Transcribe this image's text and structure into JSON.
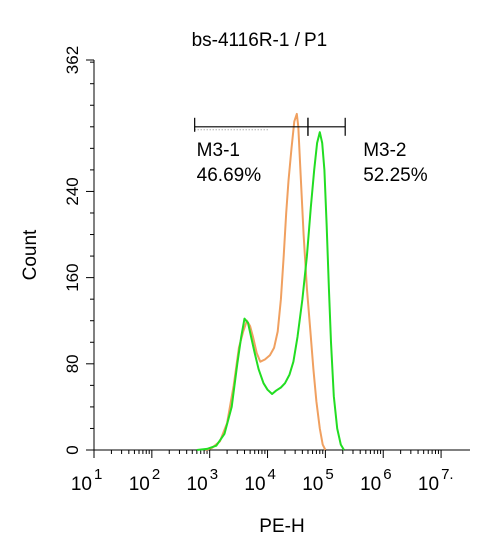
{
  "chart_data": {
    "type": "line",
    "title": "bs-4116R-1 /",
    "title_highlight": "P1",
    "title_highlight_color": "#22c41f",
    "xlabel": "PE-H",
    "ylabel": "Count",
    "x_scale": "log",
    "xlim": [
      10,
      31622776
    ],
    "ylim": [
      0,
      362
    ],
    "x_ticks": [
      {
        "value": 10,
        "base": "10",
        "exp": "1"
      },
      {
        "value": 100,
        "base": "10",
        "exp": "2"
      },
      {
        "value": 1000,
        "base": "10",
        "exp": "3"
      },
      {
        "value": 10000,
        "base": "10",
        "exp": "4"
      },
      {
        "value": 100000,
        "base": "10",
        "exp": "5"
      },
      {
        "value": 1000000,
        "base": "10",
        "exp": "6"
      },
      {
        "value": 10000000,
        "base": "10",
        "exp": "7."
      }
    ],
    "y_ticks": [
      {
        "value": 0,
        "label": "0"
      },
      {
        "value": 80,
        "label": "80"
      },
      {
        "value": 160,
        "label": "160"
      },
      {
        "value": 240,
        "label": "240"
      },
      {
        "value": 362,
        "label": "362"
      }
    ],
    "grid": false,
    "series": [
      {
        "color": "#f0a060",
        "points": [
          [
            850,
            0
          ],
          [
            1100,
            2
          ],
          [
            1500,
            8
          ],
          [
            2000,
            25
          ],
          [
            2600,
            60
          ],
          [
            3200,
            95
          ],
          [
            3800,
            110
          ],
          [
            4400,
            120
          ],
          [
            5000,
            115
          ],
          [
            5600,
            105
          ],
          [
            6500,
            90
          ],
          [
            7500,
            82
          ],
          [
            9000,
            84
          ],
          [
            11000,
            88
          ],
          [
            13000,
            95
          ],
          [
            15000,
            110
          ],
          [
            17000,
            140
          ],
          [
            19000,
            180
          ],
          [
            21000,
            220
          ],
          [
            23000,
            250
          ],
          [
            26000,
            280
          ],
          [
            29000,
            305
          ],
          [
            32000,
            312
          ],
          [
            34000,
            300
          ],
          [
            37000,
            260
          ],
          [
            42000,
            200
          ],
          [
            48000,
            150
          ],
          [
            55000,
            110
          ],
          [
            62000,
            75
          ],
          [
            70000,
            45
          ],
          [
            80000,
            20
          ],
          [
            90000,
            5
          ],
          [
            100000,
            0
          ]
        ]
      },
      {
        "color": "#22dd22",
        "points": [
          [
            600,
            0
          ],
          [
            900,
            1
          ],
          [
            1300,
            4
          ],
          [
            1800,
            15
          ],
          [
            2400,
            40
          ],
          [
            3000,
            80
          ],
          [
            3500,
            105
          ],
          [
            4000,
            122
          ],
          [
            4600,
            118
          ],
          [
            5200,
            105
          ],
          [
            6000,
            90
          ],
          [
            7000,
            75
          ],
          [
            8500,
            62
          ],
          [
            10000,
            56
          ],
          [
            12000,
            52
          ],
          [
            14000,
            55
          ],
          [
            17000,
            58
          ],
          [
            20000,
            62
          ],
          [
            24000,
            70
          ],
          [
            28000,
            82
          ],
          [
            33000,
            105
          ],
          [
            40000,
            140
          ],
          [
            48000,
            180
          ],
          [
            56000,
            225
          ],
          [
            64000,
            260
          ],
          [
            72000,
            285
          ],
          [
            80000,
            295
          ],
          [
            88000,
            285
          ],
          [
            96000,
            260
          ],
          [
            105000,
            210
          ],
          [
            115000,
            150
          ],
          [
            125000,
            100
          ],
          [
            140000,
            50
          ],
          [
            160000,
            20
          ],
          [
            185000,
            5
          ],
          [
            210000,
            0
          ]
        ]
      }
    ],
    "gates": [
      {
        "label": "M3-1",
        "percent": "46.69%",
        "range": [
          550,
          50000
        ],
        "y": 300
      },
      {
        "label": "M3-2",
        "percent": "52.25%",
        "range": [
          50000,
          220000
        ],
        "y": 300
      }
    ]
  }
}
